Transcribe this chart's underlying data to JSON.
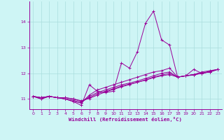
{
  "xlabel": "Windchill (Refroidissement éolien,°C)",
  "bg_color": "#cef5f5",
  "line_color": "#990099",
  "grid_color": "#aadddd",
  "x_hours": [
    0,
    1,
    2,
    3,
    4,
    5,
    6,
    7,
    8,
    9,
    10,
    11,
    12,
    13,
    14,
    15,
    16,
    17,
    18,
    19,
    20,
    21,
    22,
    23
  ],
  "series": [
    [
      11.1,
      11.0,
      11.1,
      11.05,
      11.0,
      10.9,
      10.75,
      11.55,
      11.3,
      11.25,
      11.3,
      12.4,
      12.2,
      12.85,
      13.95,
      14.42,
      13.3,
      13.1,
      11.85,
      11.9,
      12.15,
      12.0,
      12.05,
      12.15
    ],
    [
      11.1,
      11.0,
      11.1,
      11.05,
      11.0,
      10.9,
      10.85,
      11.15,
      11.35,
      11.45,
      11.55,
      11.65,
      11.75,
      11.85,
      11.95,
      12.05,
      12.1,
      12.2,
      11.85,
      11.9,
      11.95,
      12.05,
      12.1,
      12.15
    ],
    [
      11.1,
      11.05,
      11.1,
      11.05,
      11.0,
      10.95,
      10.85,
      11.1,
      11.25,
      11.35,
      11.45,
      11.55,
      11.62,
      11.7,
      11.8,
      11.9,
      12.0,
      12.05,
      11.85,
      11.9,
      11.95,
      12.0,
      12.08,
      12.15
    ],
    [
      11.1,
      11.05,
      11.1,
      11.05,
      11.05,
      11.0,
      10.9,
      11.05,
      11.2,
      11.3,
      11.4,
      11.5,
      11.58,
      11.65,
      11.75,
      11.85,
      11.93,
      12.0,
      11.85,
      11.9,
      11.95,
      12.0,
      12.05,
      12.15
    ],
    [
      11.1,
      11.05,
      11.1,
      11.05,
      11.05,
      11.0,
      10.93,
      11.02,
      11.15,
      11.27,
      11.37,
      11.47,
      11.56,
      11.65,
      11.73,
      11.83,
      11.9,
      11.95,
      11.85,
      11.9,
      11.93,
      12.0,
      12.05,
      12.15
    ]
  ],
  "ylim": [
    10.6,
    14.8
  ],
  "yticks": [
    11,
    12,
    13,
    14
  ],
  "xticks": [
    0,
    1,
    2,
    3,
    4,
    5,
    6,
    7,
    8,
    9,
    10,
    11,
    12,
    13,
    14,
    15,
    16,
    17,
    18,
    19,
    20,
    21,
    22,
    23
  ]
}
